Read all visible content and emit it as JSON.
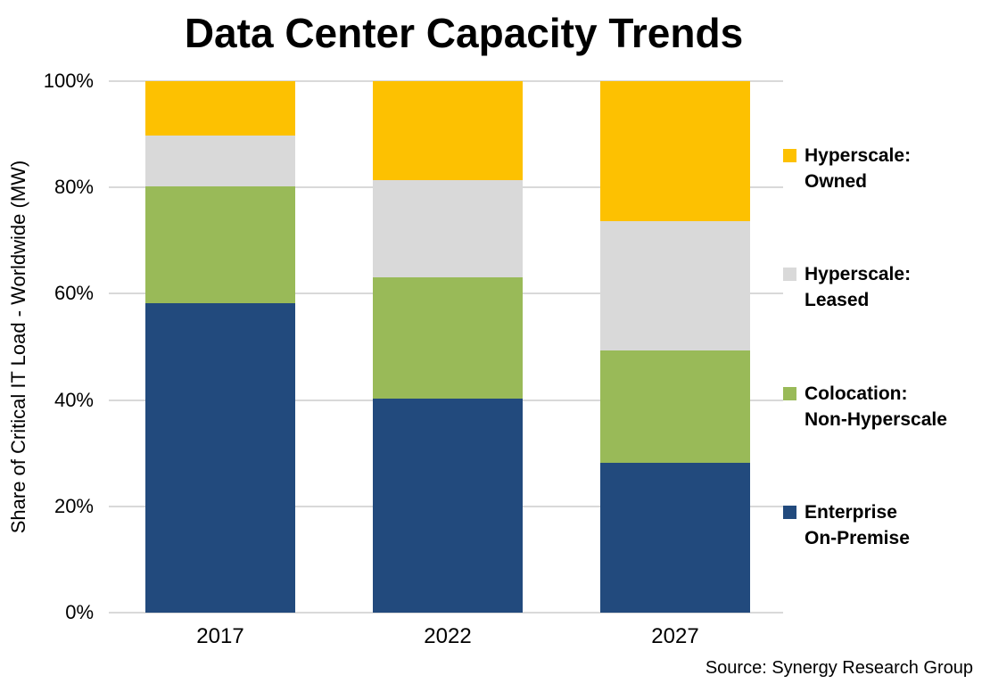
{
  "title": "Data Center Capacity Trends",
  "y_axis": {
    "title": "Share of Critical IT Load - Worldwide (MW)",
    "tick_labels": [
      "0%",
      "20%",
      "40%",
      "60%",
      "80%",
      "100%"
    ]
  },
  "source": "Source: Synergy Research Group",
  "colors": {
    "enterprise_on_premise": "#224A7D",
    "colocation_non_hyperscale": "#99BA58",
    "hyperscale_leased": "#D9D9D9",
    "hyperscale_owned": "#FDC101",
    "gridline": "#D9D9D9",
    "text": "#000000"
  },
  "chart_data": {
    "type": "bar",
    "stacked": true,
    "title": "Data Center Capacity Trends",
    "xlabel": "",
    "ylabel": "Share of Critical IT Load - Worldwide (MW)",
    "ylim": [
      0,
      100
    ],
    "y_ticks": [
      "0%",
      "20%",
      "40%",
      "60%",
      "80%",
      "100%"
    ],
    "grid": true,
    "legend_position": "right",
    "categories": [
      "2017",
      "2022",
      "2027"
    ],
    "series": [
      {
        "name": "Enterprise On-Premise",
        "legend_lines": [
          "Enterprise",
          "On-Premise"
        ],
        "color": "#224A7D",
        "values": [
          58.2,
          40.3,
          28.2
        ]
      },
      {
        "name": "Colocation: Non-Hyperscale",
        "legend_lines": [
          "Colocation:",
          "Non-Hyperscale"
        ],
        "color": "#99BA58",
        "values": [
          22.0,
          22.8,
          21.2
        ]
      },
      {
        "name": "Hyperscale: Leased",
        "legend_lines": [
          "Hyperscale:",
          "Leased"
        ],
        "color": "#D9D9D9",
        "values": [
          9.6,
          18.3,
          24.2
        ]
      },
      {
        "name": "Hyperscale: Owned",
        "legend_lines": [
          "Hyperscale:",
          "Owned"
        ],
        "color": "#FDC101",
        "values": [
          10.2,
          18.6,
          26.4
        ]
      }
    ]
  },
  "layout": {
    "bar_lefts": [
      41,
      296,
      551
    ],
    "x_label_lefts": [
      163,
      418,
      673
    ],
    "legend_tops": [
      160,
      293,
      427,
      560
    ]
  }
}
